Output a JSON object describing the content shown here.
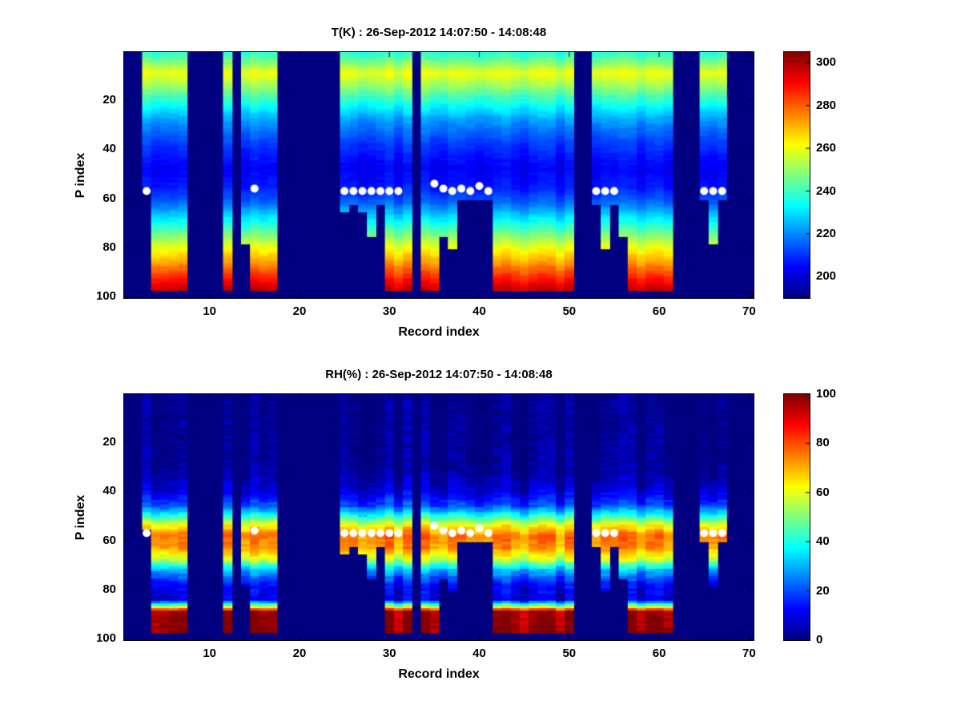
{
  "figure": {
    "background_color": "#ffffff",
    "plot_background_color": "#00008f",
    "text_color": "#000000"
  },
  "chart_data": [
    {
      "type": "heatmap",
      "title": "T(K) : 26-Sep-2012 14:07:50 - 14:08:48",
      "xlabel": "Record index",
      "ylabel": "P index",
      "x_range": [
        0.5,
        70.5
      ],
      "y_range": [
        0.5,
        100.5
      ],
      "y_axis_inverted": true,
      "x_ticks": [
        10,
        20,
        30,
        40,
        50,
        60,
        70
      ],
      "y_ticks": [
        20,
        40,
        60,
        80,
        100
      ],
      "colormap": "jet",
      "vmin": 190,
      "vmax": 305,
      "colorbar_ticks": [
        200,
        220,
        240,
        260,
        280,
        300
      ],
      "colorbar_position": "right",
      "grid": false,
      "missing_data_value": "rendered-as-colormap-minimum-dark-blue",
      "profile_note": "vertical temperature profile (K) vs P index, interpolated between breakpoints",
      "profile": {
        "p": [
          1,
          5,
          9,
          14,
          20,
          28,
          38,
          48,
          56,
          62,
          70,
          78,
          86,
          93,
          97
        ],
        "value": [
          238,
          248,
          260,
          251,
          238,
          222,
          210,
          203,
          207,
          216,
          235,
          255,
          272,
          288,
          297
        ]
      },
      "noise_col": 2.5,
      "noise_cell": 1.5,
      "columns": [
        {
          "from": 3,
          "to": 3,
          "bottom": 55
        },
        {
          "from": 4,
          "to": 7,
          "bottom": 97
        },
        {
          "from": 12,
          "to": 12,
          "bottom": 97
        },
        {
          "from": 14,
          "to": 14,
          "bottom": 78
        },
        {
          "from": 15,
          "to": 17,
          "bottom": 97
        },
        {
          "from": 25,
          "to": 25,
          "bottom": 65
        },
        {
          "from": 26,
          "to": 26,
          "bottom": 62
        },
        {
          "from": 27,
          "to": 27,
          "bottom": 65
        },
        {
          "from": 28,
          "to": 28,
          "bottom": 75
        },
        {
          "from": 29,
          "to": 29,
          "bottom": 62
        },
        {
          "from": 30,
          "to": 32,
          "bottom": 97
        },
        {
          "from": 34,
          "to": 35,
          "bottom": 97
        },
        {
          "from": 36,
          "to": 36,
          "bottom": 75
        },
        {
          "from": 37,
          "to": 37,
          "bottom": 80
        },
        {
          "from": 38,
          "to": 41,
          "bottom": 60
        },
        {
          "from": 42,
          "to": 50,
          "bottom": 97
        },
        {
          "from": 53,
          "to": 53,
          "bottom": 62
        },
        {
          "from": 54,
          "to": 54,
          "bottom": 80
        },
        {
          "from": 55,
          "to": 55,
          "bottom": 62
        },
        {
          "from": 56,
          "to": 56,
          "bottom": 75
        },
        {
          "from": 57,
          "to": 60,
          "bottom": 97
        },
        {
          "from": 61,
          "to": 61,
          "bottom": 97
        },
        {
          "from": 65,
          "to": 65,
          "bottom": 60
        },
        {
          "from": 66,
          "to": 66,
          "bottom": 78
        },
        {
          "from": 67,
          "to": 67,
          "bottom": 60
        }
      ],
      "markers": {
        "color": "#ffffff",
        "radius": 5,
        "points": [
          [
            3,
            57
          ],
          [
            15,
            56
          ],
          [
            25,
            57
          ],
          [
            26,
            57
          ],
          [
            27,
            57
          ],
          [
            28,
            57
          ],
          [
            29,
            57
          ],
          [
            30,
            57
          ],
          [
            31,
            57
          ],
          [
            35,
            54
          ],
          [
            36,
            56
          ],
          [
            37,
            57
          ],
          [
            38,
            56
          ],
          [
            39,
            57
          ],
          [
            40,
            55
          ],
          [
            41,
            57
          ],
          [
            53,
            57
          ],
          [
            54,
            57
          ],
          [
            55,
            57
          ],
          [
            65,
            57
          ],
          [
            66,
            57
          ],
          [
            67,
            57
          ]
        ]
      }
    },
    {
      "type": "heatmap",
      "title": "RH(%) : 26-Sep-2012 14:07:50 - 14:08:48",
      "xlabel": "Record index",
      "ylabel": "P index",
      "x_range": [
        0.5,
        70.5
      ],
      "y_range": [
        0.5,
        100.5
      ],
      "y_axis_inverted": true,
      "x_ticks": [
        10,
        20,
        30,
        40,
        50,
        60,
        70
      ],
      "y_ticks": [
        20,
        40,
        60,
        80,
        100
      ],
      "colormap": "jet",
      "vmin": 0,
      "vmax": 100,
      "colorbar_ticks": [
        0,
        20,
        40,
        60,
        80,
        100
      ],
      "colorbar_position": "right",
      "grid": false,
      "missing_data_value": "rendered-as-colormap-minimum-dark-blue",
      "profile_note": "vertical relative-humidity profile (%) vs P index, interpolated between breakpoints",
      "profile": {
        "p": [
          1,
          30,
          40,
          46,
          50,
          54,
          58,
          63,
          68,
          72,
          78,
          84,
          86,
          89,
          97
        ],
        "value": [
          0,
          1,
          8,
          20,
          40,
          62,
          75,
          72,
          55,
          30,
          12,
          8,
          40,
          96,
          99
        ]
      },
      "noise_col": 5,
      "noise_cell": 3,
      "columns": [
        {
          "from": 3,
          "to": 3,
          "bottom": 55
        },
        {
          "from": 4,
          "to": 7,
          "bottom": 97
        },
        {
          "from": 12,
          "to": 12,
          "bottom": 97
        },
        {
          "from": 14,
          "to": 14,
          "bottom": 78
        },
        {
          "from": 15,
          "to": 17,
          "bottom": 97
        },
        {
          "from": 25,
          "to": 25,
          "bottom": 65
        },
        {
          "from": 26,
          "to": 26,
          "bottom": 62
        },
        {
          "from": 27,
          "to": 27,
          "bottom": 65
        },
        {
          "from": 28,
          "to": 28,
          "bottom": 75
        },
        {
          "from": 29,
          "to": 29,
          "bottom": 62
        },
        {
          "from": 30,
          "to": 32,
          "bottom": 97
        },
        {
          "from": 34,
          "to": 35,
          "bottom": 97
        },
        {
          "from": 36,
          "to": 36,
          "bottom": 75
        },
        {
          "from": 37,
          "to": 37,
          "bottom": 80
        },
        {
          "from": 38,
          "to": 41,
          "bottom": 60
        },
        {
          "from": 42,
          "to": 50,
          "bottom": 97
        },
        {
          "from": 53,
          "to": 53,
          "bottom": 62
        },
        {
          "from": 54,
          "to": 54,
          "bottom": 80
        },
        {
          "from": 55,
          "to": 55,
          "bottom": 62
        },
        {
          "from": 56,
          "to": 56,
          "bottom": 75
        },
        {
          "from": 57,
          "to": 60,
          "bottom": 97
        },
        {
          "from": 61,
          "to": 61,
          "bottom": 97
        },
        {
          "from": 65,
          "to": 65,
          "bottom": 60
        },
        {
          "from": 66,
          "to": 66,
          "bottom": 78
        },
        {
          "from": 67,
          "to": 67,
          "bottom": 60
        }
      ],
      "markers": {
        "color": "#ffffff",
        "radius": 5,
        "points": [
          [
            3,
            57
          ],
          [
            15,
            56
          ],
          [
            25,
            57
          ],
          [
            26,
            57
          ],
          [
            27,
            57
          ],
          [
            28,
            57
          ],
          [
            29,
            57
          ],
          [
            30,
            57
          ],
          [
            31,
            57
          ],
          [
            35,
            54
          ],
          [
            36,
            56
          ],
          [
            37,
            57
          ],
          [
            38,
            56
          ],
          [
            39,
            57
          ],
          [
            40,
            55
          ],
          [
            41,
            57
          ],
          [
            53,
            57
          ],
          [
            54,
            57
          ],
          [
            55,
            57
          ],
          [
            65,
            57
          ],
          [
            66,
            57
          ],
          [
            67,
            57
          ]
        ]
      }
    }
  ]
}
